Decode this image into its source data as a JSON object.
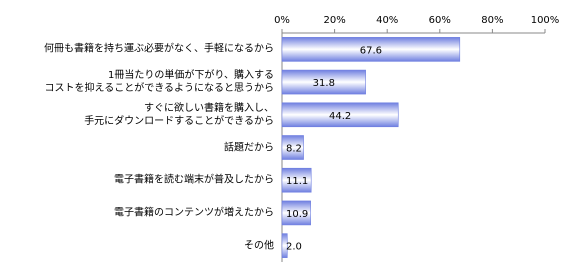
{
  "chart_data": {
    "type": "bar",
    "orientation": "horizontal",
    "categories": [
      "何冊も書籍を持ち運ぶ必要がなく、手軽になるから",
      "1冊当たりの単価が下がり、購入する\nコストを抑えることができるようになると思うから",
      "すぐに欲しい書籍を購入し、\n手元にダウンロードすることができるから",
      "話題だから",
      "電子書籍を読む端末が普及したから",
      "電子書籍のコンテンツが増えたから",
      "その他"
    ],
    "values": [
      67.6,
      31.8,
      44.2,
      8.2,
      11.1,
      10.9,
      2.0
    ],
    "value_labels": [
      "67.6",
      "31.8",
      "44.2",
      "8.2",
      "11.1",
      "10.9",
      "2.0"
    ],
    "color": "#6f7fe0",
    "xlim": [
      0,
      100
    ],
    "xticks": [
      {
        "value": 0,
        "label": "0%"
      },
      {
        "value": 20,
        "label": "20%"
      },
      {
        "value": 40,
        "label": "40%"
      },
      {
        "value": 60,
        "label": "60%"
      },
      {
        "value": 80,
        "label": "80%"
      },
      {
        "value": 100,
        "label": "100%"
      }
    ],
    "grid": false
  }
}
